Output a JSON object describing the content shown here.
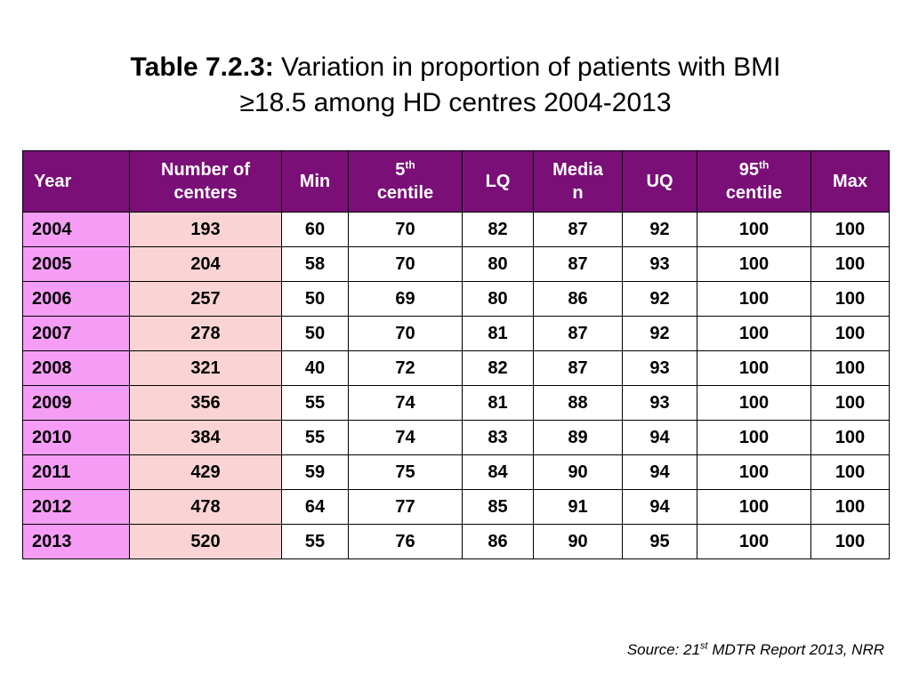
{
  "title": {
    "bold_part": "Table 7.2.3:",
    "line1_rest": " Variation in proportion of patients with BMI",
    "line2": "≥18.5 among HD centres 2004-2013"
  },
  "headers": {
    "year": "Year",
    "centers": "Number of centers",
    "min": "Min",
    "p5_num": "5",
    "p5_sup": "th",
    "p5_word": "centile",
    "lq": "LQ",
    "median_a": "Media",
    "median_b": "n",
    "uq": "UQ",
    "p95_num": "95",
    "p95_sup": "th",
    "p95_word": "centile",
    "max": "Max"
  },
  "rows": [
    {
      "year": "2004",
      "centers": "193",
      "min": "60",
      "p5": "70",
      "lq": "82",
      "median": "87",
      "uq": "92",
      "p95": "100",
      "max": "100"
    },
    {
      "year": "2005",
      "centers": "204",
      "min": "58",
      "p5": "70",
      "lq": "80",
      "median": "87",
      "uq": "93",
      "p95": "100",
      "max": "100"
    },
    {
      "year": "2006",
      "centers": "257",
      "min": "50",
      "p5": "69",
      "lq": "80",
      "median": "86",
      "uq": "92",
      "p95": "100",
      "max": "100"
    },
    {
      "year": "2007",
      "centers": "278",
      "min": "50",
      "p5": "70",
      "lq": "81",
      "median": "87",
      "uq": "92",
      "p95": "100",
      "max": "100"
    },
    {
      "year": "2008",
      "centers": "321",
      "min": "40",
      "p5": "72",
      "lq": "82",
      "median": "87",
      "uq": "93",
      "p95": "100",
      "max": "100"
    },
    {
      "year": "2009",
      "centers": "356",
      "min": "55",
      "p5": "74",
      "lq": "81",
      "median": "88",
      "uq": "93",
      "p95": "100",
      "max": "100"
    },
    {
      "year": "2010",
      "centers": "384",
      "min": "55",
      "p5": "74",
      "lq": "83",
      "median": "89",
      "uq": "94",
      "p95": "100",
      "max": "100"
    },
    {
      "year": "2011",
      "centers": "429",
      "min": "59",
      "p5": "75",
      "lq": "84",
      "median": "90",
      "uq": "94",
      "p95": "100",
      "max": "100"
    },
    {
      "year": "2012",
      "centers": "478",
      "min": "64",
      "p5": "77",
      "lq": "85",
      "median": "91",
      "uq": "94",
      "p95": "100",
      "max": "100"
    },
    {
      "year": "2013",
      "centers": "520",
      "min": "55",
      "p5": "76",
      "lq": "86",
      "median": "90",
      "uq": "95",
      "p95": "100",
      "max": "100"
    }
  ],
  "source": {
    "prefix": "Source: 21",
    "sup": "st",
    "suffix": " MDTR Report 2013, NRR"
  },
  "colors": {
    "header_bg": "#7a0f78",
    "year_col_bg": "#f59df5",
    "centers_col_bg": "#fad4d4"
  }
}
